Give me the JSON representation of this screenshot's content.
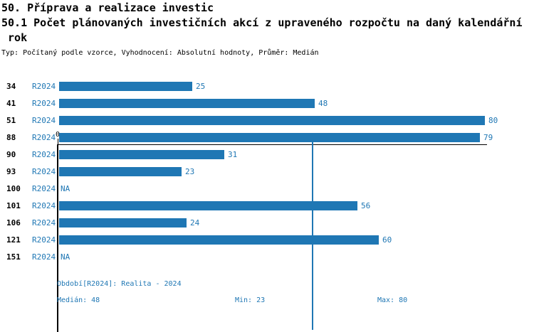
{
  "title": {
    "line1": "50. Příprava a realizace investic",
    "line2": "50.1 Počet plánovaných investičních akcí z upraveného rozpočtu na daný kalendářní",
    "line3": " rok"
  },
  "meta_line": "Typ: Počítaný podle vzorce, Vyhodnocení: Absolutní hodnoty, Průměr: Medián",
  "chart_data": {
    "type": "bar",
    "orientation": "horizontal",
    "title": "50.1 Počet plánovaných investičních akcí z upraveného rozpočtu na daný kalendářní rok",
    "categories": [
      "34",
      "41",
      "51",
      "88",
      "90",
      "93",
      "100",
      "101",
      "106",
      "121",
      "151"
    ],
    "series": [
      {
        "name": "R2024",
        "values": [
          25,
          48,
          80,
          79,
          31,
          23,
          null,
          56,
          24,
          60,
          null
        ]
      }
    ],
    "na_text": "NA",
    "x_axis": {
      "min": 0,
      "max": 80.7,
      "ticks": [
        "0"
      ],
      "grid": false
    },
    "median_line_value": 48,
    "median": 48,
    "min": 23,
    "max": 80,
    "bar_color": "#1F77B4",
    "axis_color": "#000000",
    "legend_position": "none"
  },
  "footer": {
    "period": "Období[R2024]: Realita - 2024",
    "median": "Medián: 48",
    "min": "Min: 23",
    "max": "Max: 80"
  }
}
